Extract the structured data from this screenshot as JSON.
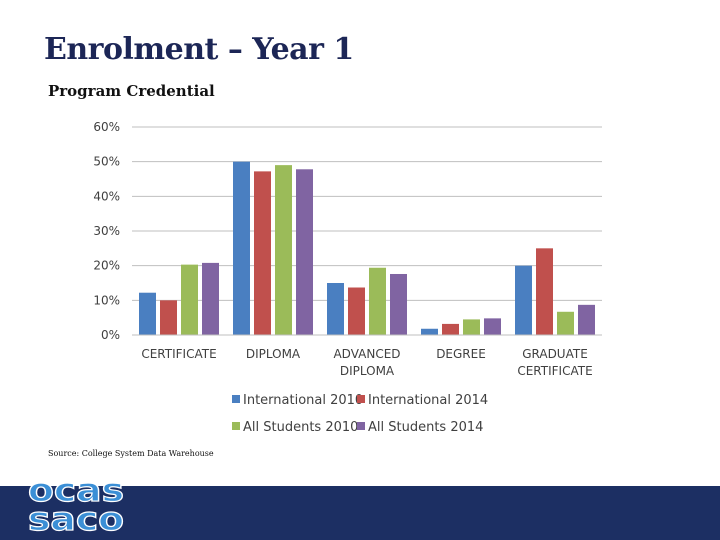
{
  "title": "Enrolment – Year 1",
  "subtitle": "Program Credential",
  "source": "Source: College System Data Warehouse",
  "logo": {
    "top": "ocas",
    "bottom": "saco",
    "color": "#3b8fd6"
  },
  "chart_data": {
    "type": "bar",
    "categories": [
      [
        "CERTIFICATE"
      ],
      [
        "DIPLOMA"
      ],
      [
        "ADVANCED",
        "DIPLOMA"
      ],
      [
        "DEGREE"
      ],
      [
        "GRADUATE",
        "CERTIFICATE"
      ]
    ],
    "ylim": [
      0,
      60
    ],
    "yticks": [
      "0%",
      "10%",
      "20%",
      "30%",
      "40%",
      "50%",
      "60%"
    ],
    "grid": true,
    "legend_position": "bottom",
    "series": [
      {
        "name": "International 2010",
        "color": "#4a7fc1",
        "values": [
          12.2,
          50.0,
          15.0,
          1.8,
          20.0
        ]
      },
      {
        "name": "International 2014",
        "color": "#c0504d",
        "values": [
          10.0,
          47.2,
          13.7,
          3.2,
          25.0
        ]
      },
      {
        "name": "All Students 2010",
        "color": "#9bbb59",
        "values": [
          20.3,
          49.0,
          19.4,
          4.5,
          6.7
        ]
      },
      {
        "name": "All Students 2014",
        "color": "#8064a2",
        "values": [
          20.8,
          47.8,
          17.6,
          4.8,
          8.7
        ]
      }
    ]
  }
}
